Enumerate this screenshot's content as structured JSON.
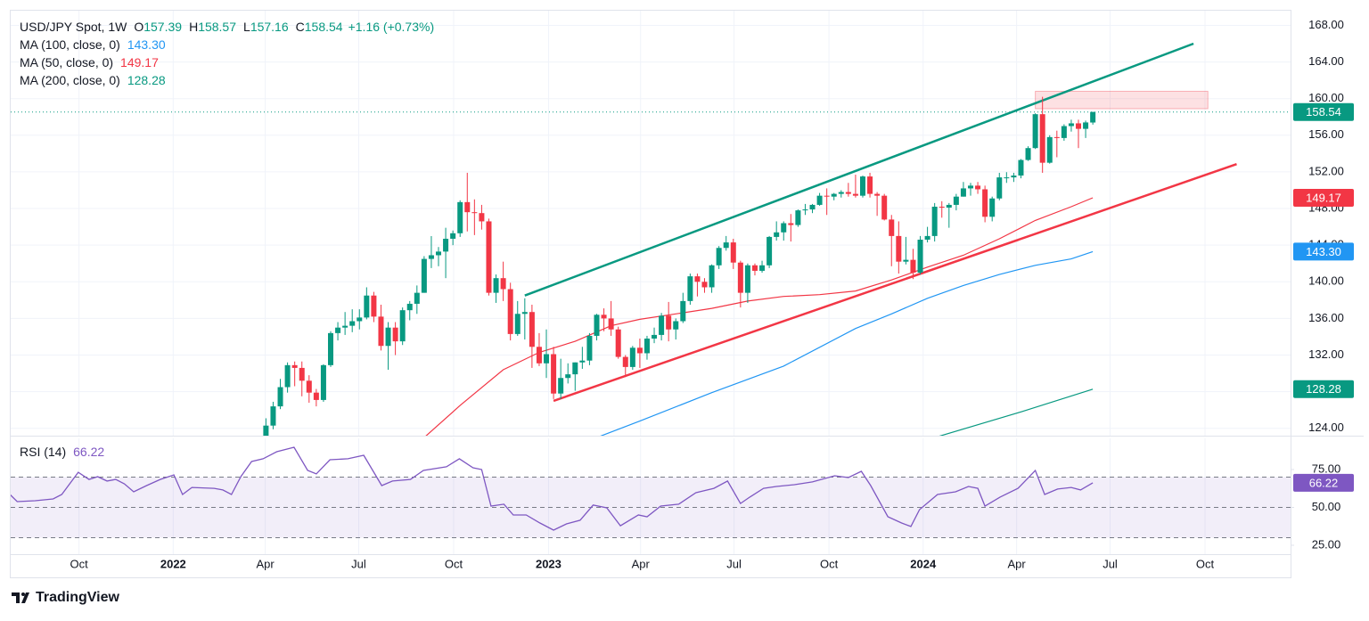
{
  "chart_data": [
    {
      "type": "candlestick",
      "title": "USD/JPY Spot, 1W",
      "ohlc_labels": [
        "O",
        "H",
        "L",
        "C"
      ],
      "change_label": "+1.16 (+0.73%)",
      "x": [
        24,
        25,
        26,
        27,
        28,
        29,
        30,
        31,
        32,
        33,
        34,
        35,
        36,
        37,
        38,
        39,
        40,
        41,
        42,
        43,
        44,
        45,
        46,
        47,
        48,
        49,
        50,
        51,
        52,
        53,
        54,
        55,
        56,
        57,
        58,
        59,
        60,
        61,
        62,
        63,
        64,
        65,
        66,
        67,
        68,
        69,
        70,
        71,
        72,
        73,
        74,
        75,
        76,
        77,
        78,
        79,
        80,
        81,
        82,
        83,
        84,
        85,
        86,
        87,
        88,
        89,
        90,
        91,
        92,
        93,
        94,
        95,
        96,
        97,
        98,
        99,
        100,
        101,
        102,
        103,
        104,
        105,
        106,
        107,
        108,
        109,
        110,
        111,
        112,
        113,
        114,
        115,
        116,
        117,
        118,
        119,
        120,
        121,
        122,
        123,
        124,
        125,
        126,
        127,
        128,
        129,
        130,
        131,
        132,
        133,
        134,
        135,
        136,
        137,
        138,
        139,
        140,
        141
      ],
      "open": [
        121.4,
        122.0,
        122.5,
        124.3,
        126.4,
        128.5,
        130.9,
        130.6,
        129.2,
        127.9,
        127.1,
        130.9,
        134.4,
        135.0,
        135.2,
        135.7,
        136.1,
        138.5,
        136.2,
        133.0,
        135.0,
        133.5,
        136.9,
        137.6,
        138.8,
        142.5,
        142.9,
        143.3,
        144.7,
        145.3,
        148.7,
        147.6,
        147.5,
        146.6,
        138.8,
        140.4,
        139.2,
        134.3,
        136.5,
        136.7,
        132.9,
        131.1,
        132.1,
        127.8,
        129.5,
        129.9,
        131.2,
        131.4,
        134.1,
        136.4,
        136.0,
        134.8,
        131.8,
        130.7,
        132.8,
        132.2,
        133.8,
        134.2,
        136.3,
        134.8,
        135.7,
        137.9,
        140.6,
        140.0,
        139.4,
        141.8,
        143.7,
        144.3,
        142.1,
        138.8,
        141.8,
        141.2,
        141.8,
        144.9,
        145.4,
        146.4,
        146.2,
        147.8,
        147.9,
        148.4,
        149.4,
        149.3,
        149.6,
        149.8,
        149.6,
        149.4,
        151.5,
        149.6,
        149.4,
        146.8,
        145.0,
        142.2,
        142.4,
        141.0,
        144.6,
        145.0,
        148.2,
        148.1,
        148.4,
        149.3,
        150.2,
        150.5,
        150.1,
        147.1,
        149.1,
        151.4,
        151.4,
        151.6,
        153.3,
        154.6,
        158.3,
        153.0,
        155.8,
        155.7,
        157.0,
        157.3,
        156.7,
        157.39
      ],
      "high": [
        122.4,
        123.2,
        125.1,
        126.9,
        129.4,
        131.2,
        131.3,
        131.3,
        129.8,
        128.3,
        131.0,
        134.6,
        135.6,
        136.7,
        137.0,
        137.0,
        139.4,
        138.9,
        137.5,
        135.6,
        135.6,
        137.2,
        137.9,
        139.6,
        142.8,
        144.99,
        143.8,
        145.9,
        145.6,
        148.9,
        151.9,
        149.0,
        148.4,
        146.9,
        140.8,
        142.2,
        139.9,
        137.9,
        138.2,
        137.5,
        134.4,
        134.8,
        132.9,
        131.6,
        131.1,
        131.2,
        132.9,
        134.4,
        136.5,
        137.1,
        137.9,
        135.1,
        132.0,
        133.0,
        133.8,
        134.1,
        135.0,
        136.6,
        137.8,
        136.0,
        138.8,
        140.9,
        140.9,
        140.4,
        141.9,
        143.9,
        145.0,
        144.7,
        142.3,
        142.0,
        142.0,
        142.3,
        145.0,
        146.6,
        146.6,
        147.4,
        147.9,
        148.5,
        148.5,
        149.7,
        150.2,
        149.7,
        150.0,
        150.8,
        151.7,
        151.6,
        151.9,
        149.8,
        149.6,
        147.3,
        146.6,
        144.9,
        143.6,
        145.0,
        146.0,
        148.6,
        148.8,
        148.6,
        149.6,
        150.9,
        150.8,
        150.9,
        150.5,
        149.3,
        151.9,
        151.97,
        151.9,
        153.4,
        154.8,
        158.4,
        160.2,
        156.0,
        156.5,
        157.2,
        157.7,
        157.7,
        157.6,
        158.57
      ],
      "low": [
        121.0,
        121.3,
        122.2,
        123.9,
        126.1,
        127.9,
        128.6,
        127.5,
        126.8,
        126.4,
        126.9,
        130.7,
        133.6,
        134.2,
        134.5,
        134.8,
        135.9,
        135.6,
        132.5,
        130.4,
        132.0,
        133.1,
        135.8,
        136.5,
        138.8,
        141.5,
        141.7,
        140.4,
        144.0,
        144.9,
        145.5,
        145.1,
        145.7,
        138.5,
        137.7,
        137.9,
        133.6,
        134.1,
        133.7,
        130.6,
        130.8,
        129.5,
        127.2,
        127.2,
        128.9,
        128.1,
        130.5,
        130.9,
        133.6,
        134.6,
        134.1,
        131.6,
        129.6,
        130.4,
        130.6,
        131.5,
        133.3,
        133.6,
        133.5,
        133.7,
        135.5,
        137.5,
        138.4,
        138.8,
        138.8,
        141.4,
        143.4,
        141.4,
        137.2,
        137.7,
        140.7,
        141.0,
        141.5,
        144.5,
        144.5,
        144.4,
        146.0,
        147.3,
        147.5,
        148.3,
        147.3,
        148.9,
        149.2,
        149.3,
        149.2,
        149.2,
        149.2,
        147.2,
        146.7,
        141.7,
        140.9,
        141.9,
        140.3,
        140.8,
        144.3,
        144.4,
        147.0,
        145.9,
        147.8,
        149.3,
        149.4,
        149.6,
        146.5,
        146.6,
        148.9,
        150.8,
        150.9,
        151.3,
        153.2,
        154.5,
        151.9,
        152.9,
        153.6,
        155.4,
        156.4,
        154.6,
        155.7,
        157.16
      ],
      "close": [
        122.0,
        122.5,
        124.3,
        126.4,
        128.5,
        130.9,
        130.6,
        129.2,
        127.9,
        127.1,
        130.9,
        134.4,
        135.0,
        135.2,
        135.7,
        136.1,
        138.5,
        136.2,
        133.0,
        135.0,
        133.5,
        136.9,
        137.6,
        138.8,
        142.5,
        142.9,
        143.3,
        144.7,
        145.3,
        148.7,
        147.6,
        147.5,
        146.6,
        138.8,
        140.4,
        139.2,
        134.3,
        136.5,
        136.7,
        132.9,
        131.1,
        132.1,
        127.8,
        129.5,
        129.9,
        131.2,
        131.4,
        134.1,
        136.4,
        136.0,
        134.8,
        131.8,
        130.7,
        132.8,
        132.2,
        133.8,
        134.2,
        136.3,
        134.8,
        135.7,
        137.9,
        140.6,
        140.0,
        139.4,
        141.8,
        143.7,
        144.3,
        142.1,
        138.8,
        141.8,
        141.2,
        141.8,
        144.9,
        145.4,
        146.4,
        146.2,
        147.8,
        147.9,
        148.4,
        149.4,
        149.3,
        149.6,
        149.8,
        149.6,
        149.4,
        151.5,
        149.6,
        149.4,
        146.8,
        145.0,
        142.2,
        142.4,
        141.0,
        144.6,
        145.0,
        148.2,
        148.1,
        148.4,
        149.3,
        150.2,
        150.5,
        150.1,
        147.1,
        149.1,
        151.4,
        151.4,
        151.6,
        153.3,
        154.6,
        158.3,
        153.0,
        155.8,
        155.7,
        157.0,
        157.3,
        156.7,
        157.4,
        158.54
      ],
      "up_color": "#089981",
      "down_color": "#f23645",
      "series": [
        {
          "name": "MA (100, close, 0)",
          "type": "line",
          "color": "#2196f3",
          "x": [
            72,
            78,
            88,
            98,
            108,
            113,
            118,
            123,
            128,
            133,
            138,
            141
          ],
          "values": [
            123.0,
            124.8,
            127.9,
            130.8,
            134.9,
            136.5,
            138.2,
            139.6,
            140.8,
            141.8,
            142.5,
            143.3
          ],
          "value_labels": [
            null,
            null,
            null,
            null,
            null,
            null,
            null,
            null,
            null,
            null,
            null,
            "143.30"
          ]
        },
        {
          "name": "MA (50, close, 0)",
          "type": "line",
          "color": "#f23645",
          "x": [
            48,
            53,
            59,
            64,
            69,
            74,
            78,
            83,
            88,
            93,
            98,
            103,
            108,
            113,
            118,
            123,
            128,
            133,
            138,
            141
          ],
          "values": [
            123.0,
            126.5,
            130.4,
            132.3,
            133.5,
            135.2,
            135.9,
            136.5,
            137.1,
            137.9,
            138.4,
            138.6,
            139.0,
            140.2,
            141.6,
            142.9,
            144.7,
            146.7,
            148.2,
            149.17
          ]
        },
        {
          "name": "MA (200, close, 0)",
          "type": "line",
          "color": "#089981",
          "x": [
            119,
            131,
            141
          ],
          "values": [
            123.0,
            125.8,
            128.28
          ]
        }
      ],
      "trendlines": [
        {
          "color": "#089981",
          "x": [
            62,
            155
          ],
          "values": [
            138.5,
            166.0
          ]
        },
        {
          "color": "#f23645",
          "x": [
            66,
            161
          ],
          "values": [
            127.0,
            152.85
          ]
        }
      ],
      "zones": [
        {
          "color": "#f23645",
          "x": [
            133,
            157
          ],
          "y": [
            158.9,
            160.8
          ]
        }
      ],
      "last_price_line": true,
      "xlim": [
        -9.5,
        168.5
      ],
      "xticks": [
        {
          "value": 0,
          "label": "Oct"
        },
        {
          "value": 13.1,
          "label": "2022"
        },
        {
          "value": 25.9,
          "label": "Apr"
        },
        {
          "value": 38.9,
          "label": "Jul"
        },
        {
          "value": 52.1,
          "label": "Oct"
        },
        {
          "value": 65.3,
          "label": "2023"
        },
        {
          "value": 78.1,
          "label": "Apr"
        },
        {
          "value": 91.1,
          "label": "Jul"
        },
        {
          "value": 104.3,
          "label": "Oct"
        },
        {
          "value": 117.4,
          "label": "2024"
        },
        {
          "value": 130.4,
          "label": "Apr"
        },
        {
          "value": 143.4,
          "label": "Jul"
        },
        {
          "value": 156.6,
          "label": "Oct"
        }
      ],
      "ylim": [
        123.2,
        169.6
      ],
      "yticks": [
        {
          "value": 124,
          "label": "124.00"
        },
        {
          "value": 128,
          "label": "128.00"
        },
        {
          "value": 132,
          "label": "132.00"
        },
        {
          "value": 136,
          "label": "136.00"
        },
        {
          "value": 140,
          "label": "140.00"
        },
        {
          "value": 144,
          "label": "144.00"
        },
        {
          "value": 148,
          "label": "148.00"
        },
        {
          "value": 152,
          "label": "152.00"
        },
        {
          "value": 156,
          "label": "156.00"
        },
        {
          "value": 160,
          "label": "160.00"
        },
        {
          "value": 164,
          "label": "164.00"
        },
        {
          "value": 168,
          "label": "168.00"
        }
      ],
      "grid": true
    },
    {
      "type": "line",
      "series": [
        {
          "name": "RSI (14)",
          "color": "#7e57c2",
          "x": [
            -9.6,
            -8.6,
            -6.1,
            -3.6,
            -2.4,
            -0.1,
            1.4,
            2.6,
            3.9,
            5.1,
            6.3,
            7.6,
            9.4,
            11.3,
            13.2,
            14.4,
            15.7,
            18.8,
            20.0,
            21.2,
            22.5,
            24.0,
            25.6,
            27.5,
            29.9,
            31.8,
            33.0,
            34.9,
            37.4,
            39.6,
            42.1,
            43.6,
            46.1,
            47.9,
            51.1,
            52.9,
            54.8,
            56.0,
            57.3,
            59.1,
            60.4,
            62.2,
            64.1,
            66.0,
            67.8,
            69.7,
            71.5,
            73.4,
            75.3,
            77.8,
            79.0,
            80.9,
            83.4,
            85.8,
            88.3,
            90.2,
            92.0,
            93.3,
            95.2,
            97.0,
            99.5,
            102.0,
            105.1,
            107.0,
            108.8,
            110.1,
            112.5,
            114.4,
            115.7,
            116.9,
            119.4,
            121.9,
            123.7,
            125.0,
            126.0,
            128.1,
            130.6,
            133.0,
            134.3,
            136.1,
            138.0,
            139.3,
            141.0
          ],
          "values": [
            58.5,
            53.8,
            54.4,
            55.6,
            58.5,
            73.2,
            68.5,
            70.3,
            67.4,
            68.5,
            65.6,
            60.3,
            64.4,
            68.5,
            71.5,
            58.5,
            63.2,
            62.6,
            61.5,
            58.5,
            70.3,
            80.3,
            82.1,
            86.8,
            89.7,
            74.4,
            72.1,
            81.5,
            82.1,
            84.4,
            64.4,
            67.4,
            68.5,
            74.4,
            76.8,
            82.1,
            76.2,
            75.0,
            50.9,
            52.1,
            45.0,
            45.0,
            39.7,
            35.0,
            39.1,
            41.5,
            51.5,
            49.7,
            37.9,
            45.0,
            43.8,
            50.9,
            52.1,
            59.7,
            62.6,
            67.4,
            52.6,
            56.8,
            62.6,
            63.8,
            65.0,
            66.8,
            70.9,
            69.7,
            73.8,
            64.4,
            43.8,
            39.7,
            37.4,
            48.5,
            58.5,
            60.3,
            63.8,
            62.6,
            50.9,
            56.8,
            62.6,
            74.4,
            58.5,
            62.1,
            63.2,
            61.5,
            66.22
          ]
        }
      ],
      "band": [
        30,
        70
      ],
      "band_color": "#7e57c2",
      "levels": [
        70,
        50,
        30
      ],
      "ylim": [
        19.1,
        95.6
      ],
      "yticks": [
        {
          "value": 25,
          "label": "25.00"
        },
        {
          "value": 50,
          "label": "50.00"
        },
        {
          "value": 75,
          "label": "75.00"
        }
      ]
    }
  ],
  "footer": {
    "brand": "TradingView"
  }
}
